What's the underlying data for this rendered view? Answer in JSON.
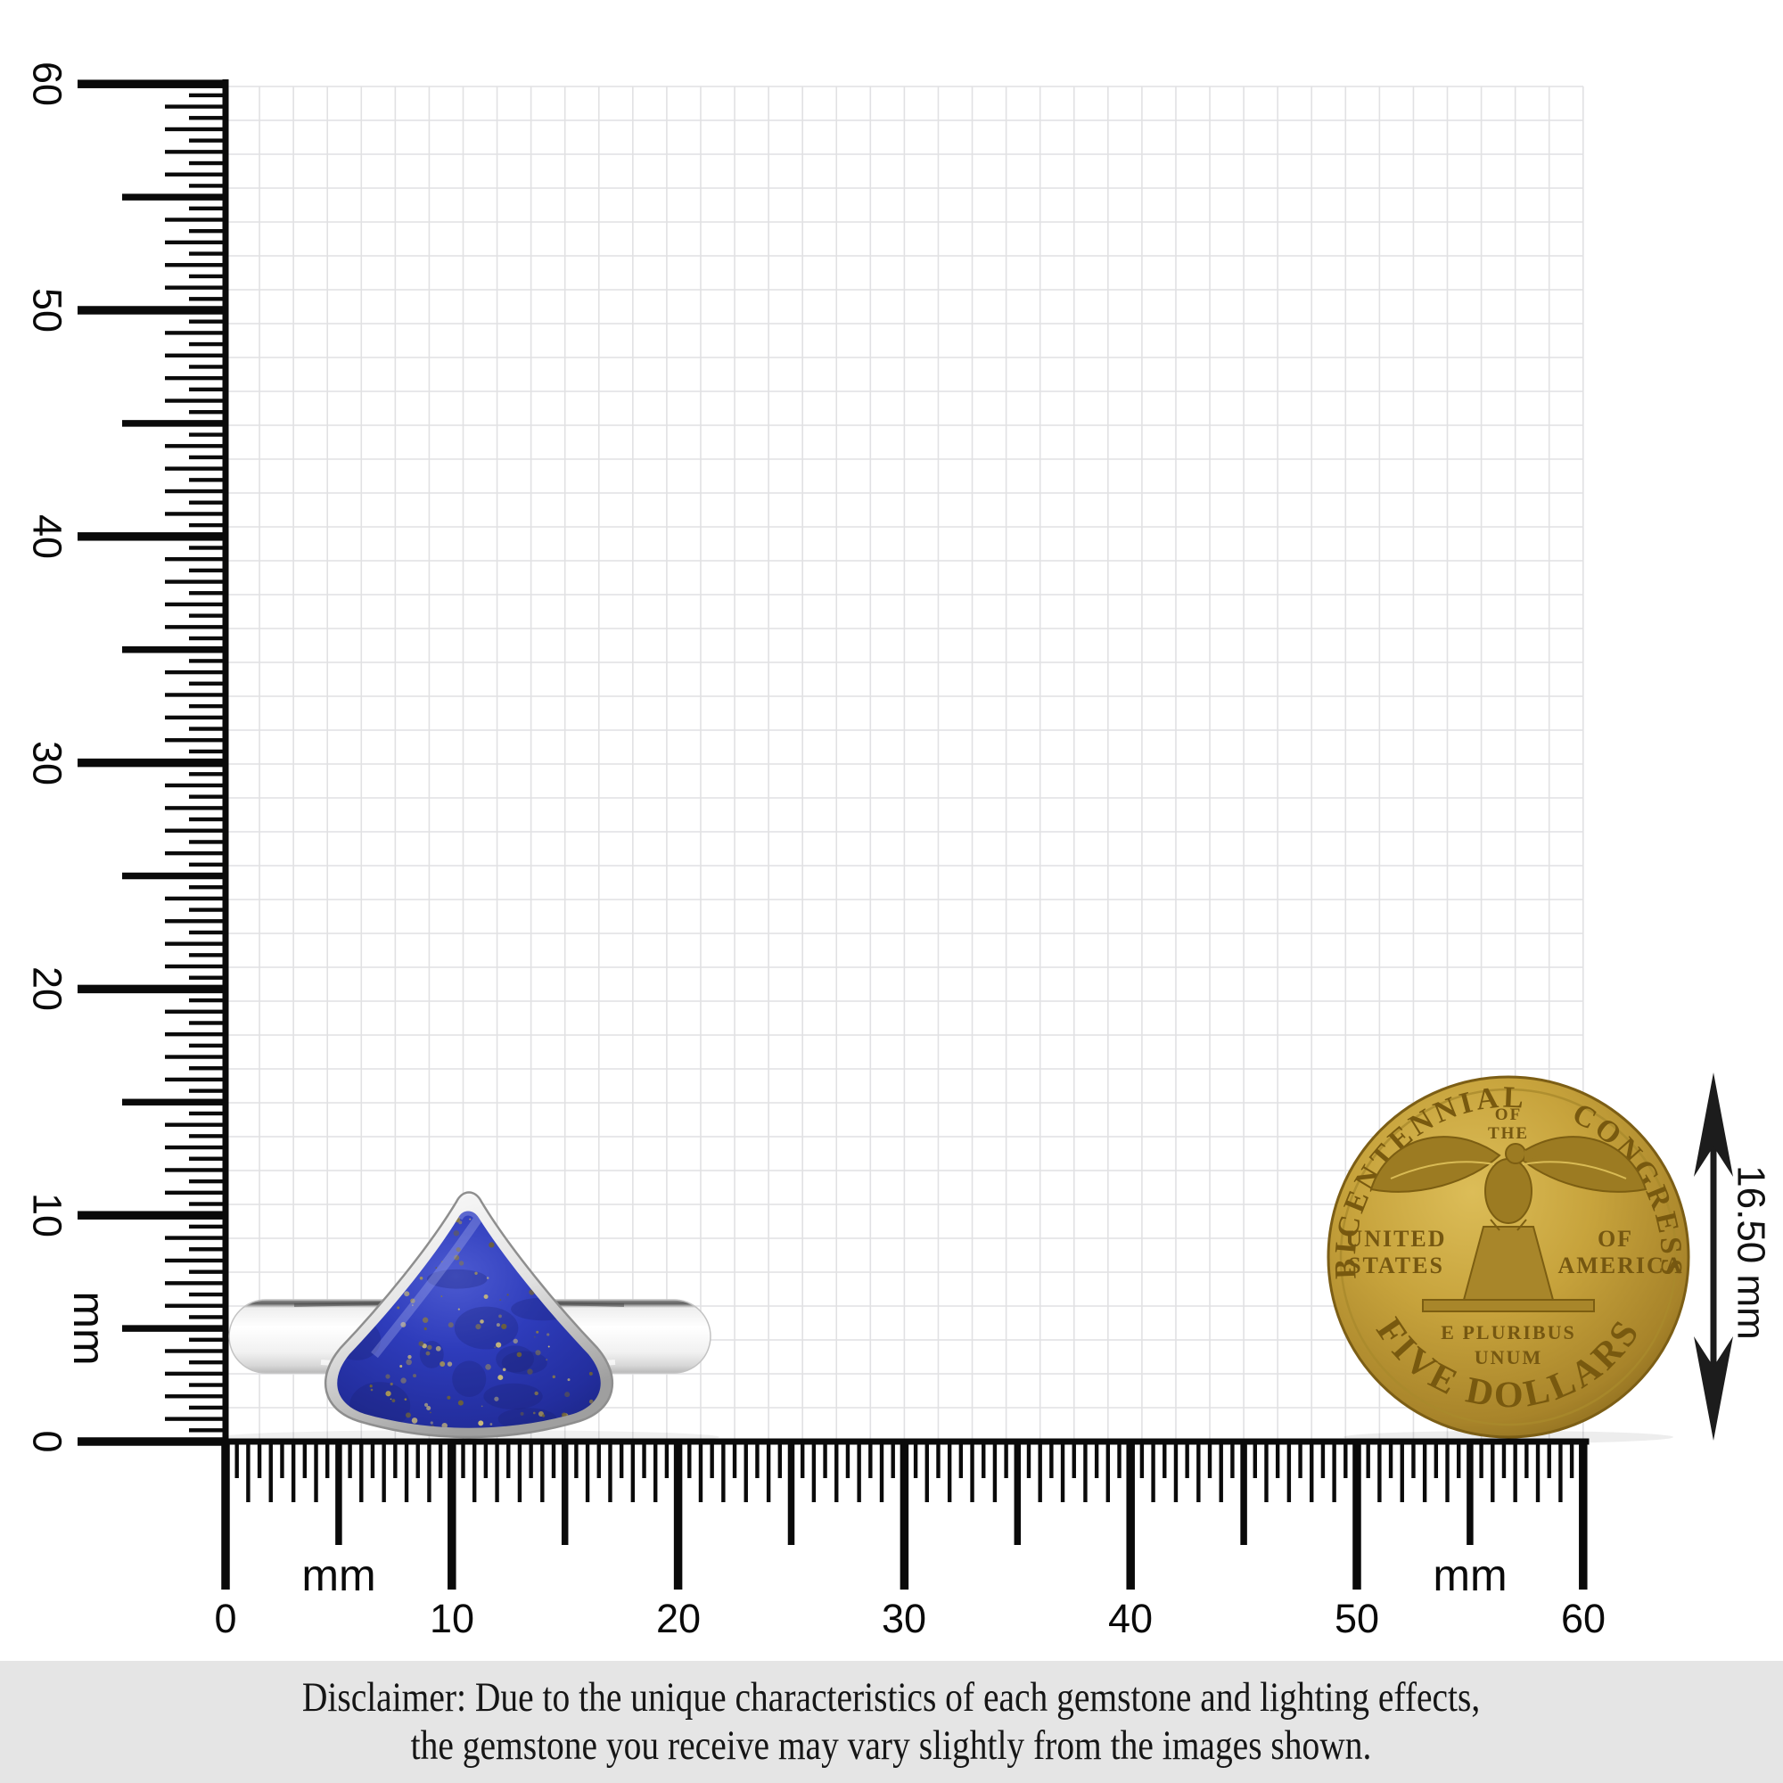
{
  "rulers": {
    "unit_label": "mm",
    "left": {
      "labels": [
        "0",
        "10",
        "20",
        "30",
        "40",
        "50",
        "60"
      ]
    },
    "bottom": {
      "labels": [
        "0",
        "10",
        "20",
        "30",
        "40",
        "50",
        "60"
      ]
    }
  },
  "coin": {
    "top_left_arc": "BICENTENNIAL",
    "top_center_line1": "OF",
    "top_center_line2": "THE",
    "top_right_arc": "CONGRESS",
    "left_line1": "UNITED",
    "left_line2": "STATES",
    "right_line1": "OF",
    "right_line2": "AMERICA",
    "motto_line1": "E PLURIBUS",
    "motto_line2": "UNUM",
    "bottom_arc": "FIVE DOLLARS"
  },
  "measurement": {
    "coin_diameter_label": "16.50 mm"
  },
  "disclaimer": {
    "line1": "Disclaimer: Due to the unique characteristics of each gemstone and lighting effects,",
    "line2": "the gemstone you receive may vary slightly from the images shown."
  },
  "colors": {
    "grid_line": "#e1e1e3",
    "ruler_black": "#0a0a0a",
    "stone_blue": "#2e3cbb",
    "stone_blue_dark": "#1c2687",
    "pyrite_fleck": "#a79554",
    "silver_light": "#fdfdfd",
    "silver_mid": "#c9c9c9",
    "coin_gold": "#c7a33c",
    "coin_gold_dark": "#8d6d1f",
    "disclaimer_bg": "#e5e5e5"
  }
}
